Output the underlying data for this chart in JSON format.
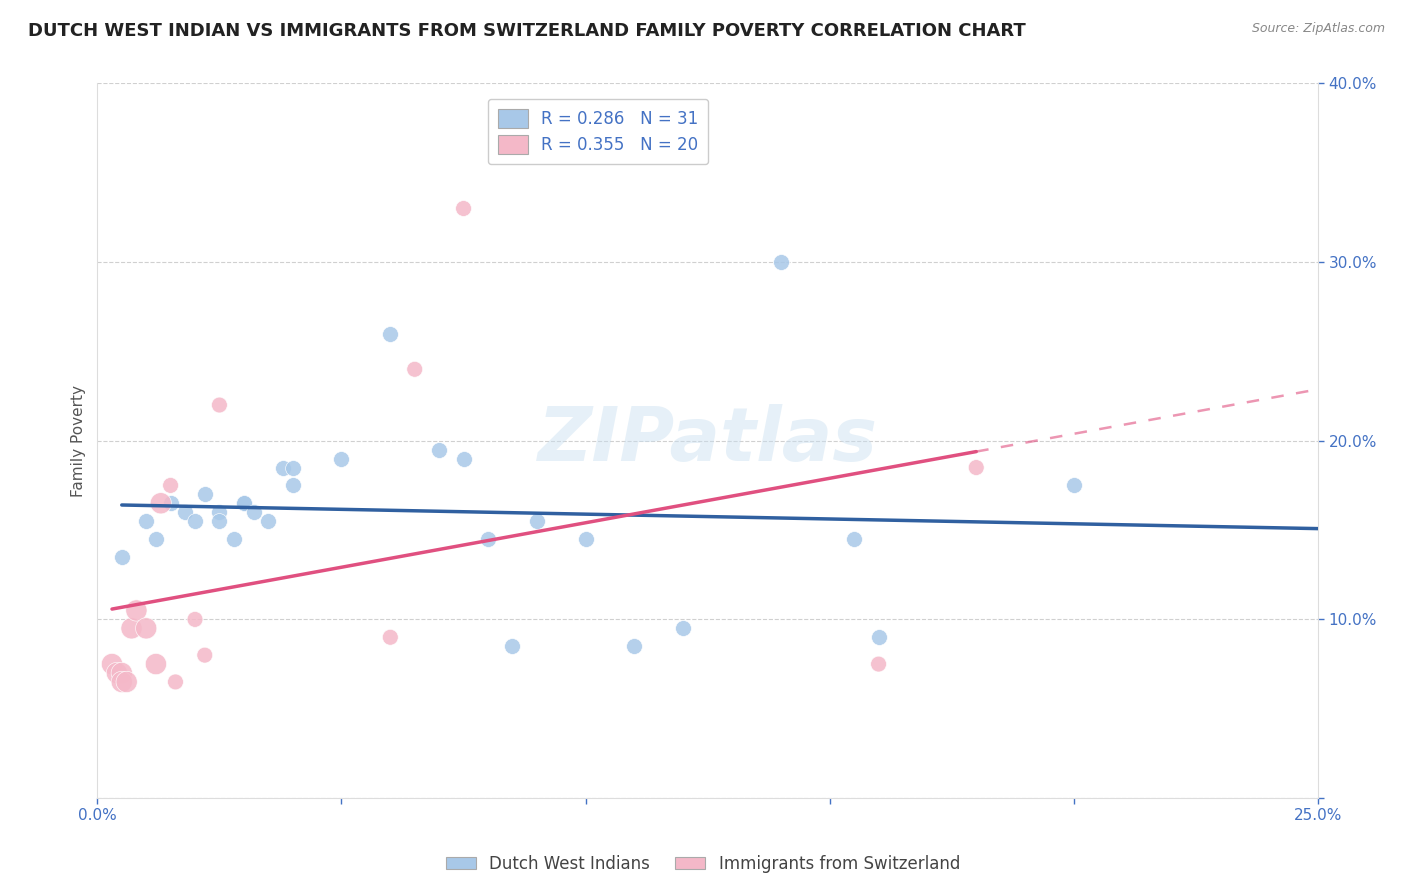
{
  "title": "DUTCH WEST INDIAN VS IMMIGRANTS FROM SWITZERLAND FAMILY POVERTY CORRELATION CHART",
  "source": "Source: ZipAtlas.com",
  "ylabel": "Family Poverty",
  "xlim": [
    0.0,
    0.25
  ],
  "ylim": [
    0.0,
    0.4
  ],
  "xticks": [
    0.0,
    0.05,
    0.1,
    0.15,
    0.2,
    0.25
  ],
  "yticks": [
    0.0,
    0.1,
    0.2,
    0.3,
    0.4
  ],
  "xtick_labels": [
    "0.0%",
    "",
    "",
    "",
    "",
    "25.0%"
  ],
  "ytick_labels_right": [
    "",
    "10.0%",
    "20.0%",
    "30.0%",
    "40.0%"
  ],
  "blue_R": 0.286,
  "blue_N": 31,
  "pink_R": 0.355,
  "pink_N": 20,
  "blue_label": "Dutch West Indians",
  "pink_label": "Immigrants from Switzerland",
  "blue_color": "#a8c8e8",
  "pink_color": "#f4b8c8",
  "blue_line_color": "#3060a0",
  "pink_line_color": "#e05080",
  "watermark": "ZIPatlas",
  "blue_scatter_x": [
    0.005,
    0.01,
    0.012,
    0.015,
    0.018,
    0.02,
    0.022,
    0.025,
    0.025,
    0.028,
    0.03,
    0.03,
    0.032,
    0.035,
    0.038,
    0.04,
    0.04,
    0.05,
    0.06,
    0.07,
    0.075,
    0.08,
    0.085,
    0.09,
    0.1,
    0.11,
    0.12,
    0.14,
    0.155,
    0.16,
    0.2
  ],
  "blue_scatter_y": [
    0.135,
    0.155,
    0.145,
    0.165,
    0.16,
    0.155,
    0.17,
    0.16,
    0.155,
    0.145,
    0.165,
    0.165,
    0.16,
    0.155,
    0.185,
    0.185,
    0.175,
    0.19,
    0.26,
    0.195,
    0.19,
    0.145,
    0.085,
    0.155,
    0.145,
    0.085,
    0.095,
    0.3,
    0.145,
    0.09,
    0.175
  ],
  "pink_scatter_x": [
    0.003,
    0.004,
    0.005,
    0.005,
    0.006,
    0.007,
    0.008,
    0.01,
    0.012,
    0.013,
    0.015,
    0.016,
    0.02,
    0.022,
    0.025,
    0.06,
    0.065,
    0.075,
    0.16,
    0.18
  ],
  "pink_scatter_y": [
    0.075,
    0.07,
    0.07,
    0.065,
    0.065,
    0.095,
    0.105,
    0.095,
    0.075,
    0.165,
    0.175,
    0.065,
    0.1,
    0.08,
    0.22,
    0.09,
    0.24,
    0.33,
    0.075,
    0.185
  ],
  "background_color": "#ffffff",
  "grid_color": "#d0d0d0",
  "title_fontsize": 13,
  "axis_label_fontsize": 11,
  "tick_fontsize": 11,
  "legend_fontsize": 12,
  "tick_color": "#4472c4",
  "title_color": "#222222",
  "source_color": "#888888"
}
